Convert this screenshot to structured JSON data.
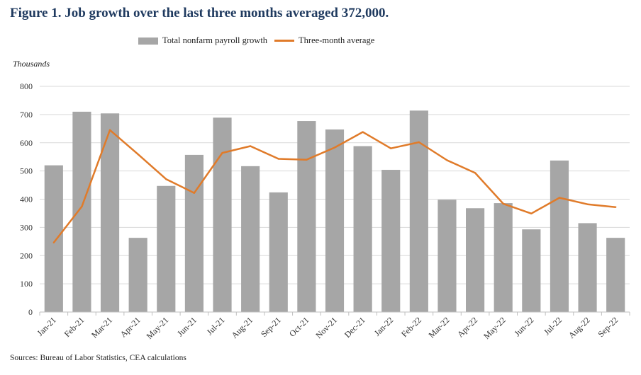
{
  "title": "Figure 1. Job growth over the last three months averaged 372,000.",
  "source": "Sources: Bureau of Labor Statistics, CEA calculations",
  "colors": {
    "bar": "#a6a6a6",
    "line": "#e07b2a",
    "grid": "#d9d9d9",
    "title": "#1f3a5f"
  },
  "chart_data": {
    "type": "bar",
    "ylabel": "Thousands",
    "ylim": [
      0,
      800
    ],
    "yticks": [
      0,
      100,
      200,
      300,
      400,
      500,
      600,
      700,
      800
    ],
    "grid": true,
    "legend_position": "top-center",
    "categories": [
      "Jan-21",
      "Feb-21",
      "Mar-21",
      "Apr-21",
      "May-21",
      "Jun-21",
      "Jul-21",
      "Aug-21",
      "Sep-21",
      "Oct-21",
      "Nov-21",
      "Dec-21",
      "Jan-22",
      "Feb-22",
      "Mar-22",
      "Apr-22",
      "May-22",
      "Jun-22",
      "Jul-22",
      "Aug-22",
      "Sep-22"
    ],
    "series": [
      {
        "name": "Total nonfarm payroll growth",
        "type": "bar",
        "values": [
          520,
          710,
          704,
          263,
          447,
          557,
          689,
          517,
          424,
          677,
          647,
          588,
          504,
          714,
          398,
          368,
          386,
          293,
          537,
          315,
          263
        ]
      },
      {
        "name": "Three-month average",
        "type": "line",
        "values": [
          246,
          374,
          645,
          559,
          471,
          422,
          564,
          588,
          543,
          540,
          583,
          638,
          580,
          602,
          538,
          493,
          384,
          349,
          405,
          382,
          372
        ]
      }
    ]
  }
}
